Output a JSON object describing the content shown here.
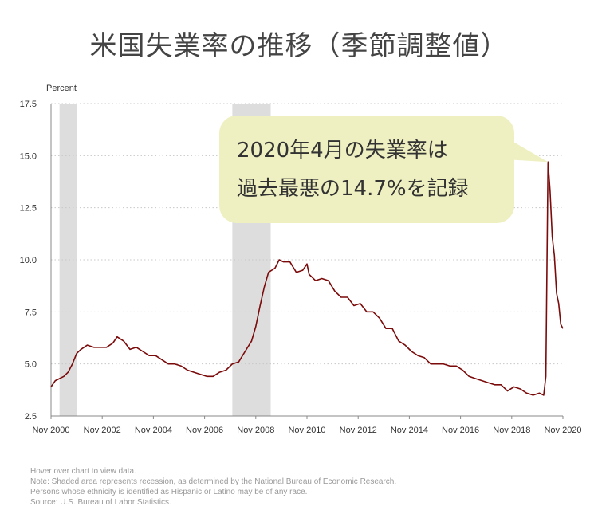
{
  "title": "米国失業率の推移（季節調整値）",
  "chart_data": {
    "type": "line",
    "ylabel": "Percent",
    "ylim": [
      2.5,
      17.5
    ],
    "yticks": [
      "2.5",
      "5.0",
      "7.5",
      "10.0",
      "12.5",
      "15.0",
      "17.5"
    ],
    "xticks": [
      "Nov 2000",
      "Nov 2002",
      "Nov 2004",
      "Nov 2006",
      "Nov 2008",
      "Nov 2010",
      "Nov 2012",
      "Nov 2014",
      "Nov 2016",
      "Nov 2018",
      "Nov 2020"
    ],
    "grid": true,
    "line_color": "#7b0a0a",
    "recession_color": "#dddddd",
    "recessions": [
      [
        "2001-03",
        "2001-11"
      ],
      [
        "2007-12",
        "2009-06"
      ]
    ],
    "series": [
      {
        "points": [
          [
            "2000-11",
            3.9
          ],
          [
            "2001-01",
            4.2
          ],
          [
            "2001-03",
            4.3
          ],
          [
            "2001-05",
            4.4
          ],
          [
            "2001-07",
            4.6
          ],
          [
            "2001-09",
            5.0
          ],
          [
            "2001-11",
            5.5
          ],
          [
            "2002-01",
            5.7
          ],
          [
            "2002-04",
            5.9
          ],
          [
            "2002-07",
            5.8
          ],
          [
            "2002-10",
            5.8
          ],
          [
            "2003-01",
            5.8
          ],
          [
            "2003-04",
            6.0
          ],
          [
            "2003-06",
            6.3
          ],
          [
            "2003-09",
            6.1
          ],
          [
            "2003-12",
            5.7
          ],
          [
            "2004-03",
            5.8
          ],
          [
            "2004-06",
            5.6
          ],
          [
            "2004-09",
            5.4
          ],
          [
            "2004-12",
            5.4
          ],
          [
            "2005-03",
            5.2
          ],
          [
            "2005-06",
            5.0
          ],
          [
            "2005-09",
            5.0
          ],
          [
            "2005-12",
            4.9
          ],
          [
            "2006-03",
            4.7
          ],
          [
            "2006-06",
            4.6
          ],
          [
            "2006-09",
            4.5
          ],
          [
            "2006-12",
            4.4
          ],
          [
            "2007-03",
            4.4
          ],
          [
            "2007-06",
            4.6
          ],
          [
            "2007-09",
            4.7
          ],
          [
            "2007-12",
            5.0
          ],
          [
            "2008-03",
            5.1
          ],
          [
            "2008-06",
            5.6
          ],
          [
            "2008-09",
            6.1
          ],
          [
            "2008-11",
            6.8
          ],
          [
            "2009-01",
            7.8
          ],
          [
            "2009-03",
            8.7
          ],
          [
            "2009-05",
            9.4
          ],
          [
            "2009-08",
            9.6
          ],
          [
            "2009-10",
            10.0
          ],
          [
            "2009-12",
            9.9
          ],
          [
            "2010-03",
            9.9
          ],
          [
            "2010-06",
            9.4
          ],
          [
            "2010-09",
            9.5
          ],
          [
            "2010-11",
            9.8
          ],
          [
            "2010-12",
            9.3
          ],
          [
            "2011-03",
            9.0
          ],
          [
            "2011-06",
            9.1
          ],
          [
            "2011-09",
            9.0
          ],
          [
            "2011-12",
            8.5
          ],
          [
            "2012-03",
            8.2
          ],
          [
            "2012-06",
            8.2
          ],
          [
            "2012-09",
            7.8
          ],
          [
            "2012-12",
            7.9
          ],
          [
            "2013-03",
            7.5
          ],
          [
            "2013-06",
            7.5
          ],
          [
            "2013-09",
            7.2
          ],
          [
            "2013-12",
            6.7
          ],
          [
            "2014-03",
            6.7
          ],
          [
            "2014-06",
            6.1
          ],
          [
            "2014-09",
            5.9
          ],
          [
            "2014-12",
            5.6
          ],
          [
            "2015-03",
            5.4
          ],
          [
            "2015-06",
            5.3
          ],
          [
            "2015-09",
            5.0
          ],
          [
            "2015-12",
            5.0
          ],
          [
            "2016-03",
            5.0
          ],
          [
            "2016-06",
            4.9
          ],
          [
            "2016-09",
            4.9
          ],
          [
            "2016-12",
            4.7
          ],
          [
            "2017-03",
            4.4
          ],
          [
            "2017-06",
            4.3
          ],
          [
            "2017-09",
            4.2
          ],
          [
            "2017-12",
            4.1
          ],
          [
            "2018-03",
            4.0
          ],
          [
            "2018-06",
            4.0
          ],
          [
            "2018-09",
            3.7
          ],
          [
            "2018-12",
            3.9
          ],
          [
            "2019-03",
            3.8
          ],
          [
            "2019-06",
            3.6
          ],
          [
            "2019-09",
            3.5
          ],
          [
            "2019-12",
            3.6
          ],
          [
            "2020-02",
            3.5
          ],
          [
            "2020-03",
            4.4
          ],
          [
            "2020-04",
            14.7
          ],
          [
            "2020-05",
            13.3
          ],
          [
            "2020-06",
            11.1
          ],
          [
            "2020-07",
            10.2
          ],
          [
            "2020-08",
            8.4
          ],
          [
            "2020-09",
            7.9
          ],
          [
            "2020-10",
            6.9
          ],
          [
            "2020-11",
            6.7
          ]
        ]
      }
    ],
    "annotation": {
      "lines": [
        "2020年4月の失業率は",
        "過去最悪の14.7%を記録"
      ],
      "target": [
        "2020-04",
        14.7
      ],
      "background": "#eff0c1"
    }
  },
  "notes": [
    "Hover over chart to view data.",
    "Note: Shaded area represents recession, as determined by the National Bureau of Economic Research.",
    "Persons whose ethnicity is identified as Hispanic or Latino may be of any race.",
    "Source: U.S. Bureau of Labor Statistics."
  ]
}
